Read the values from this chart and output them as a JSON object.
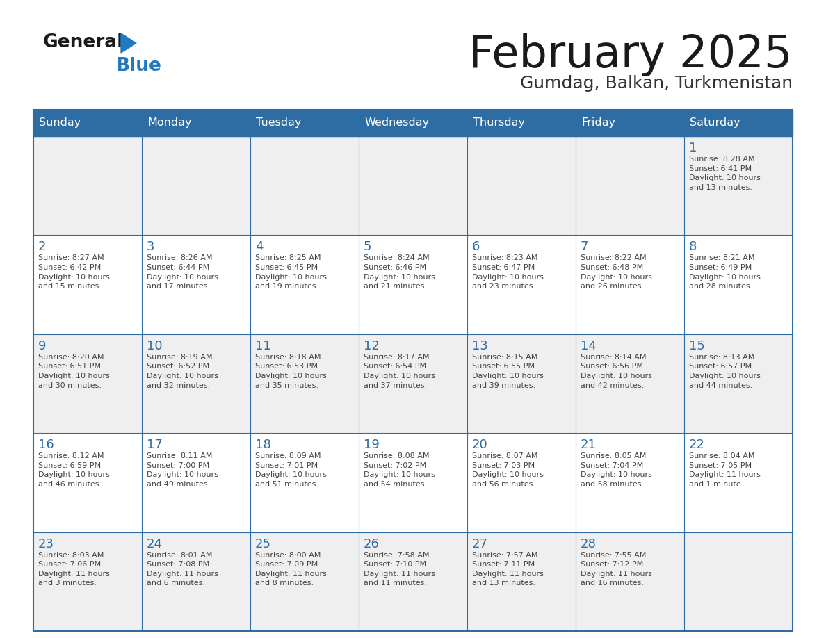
{
  "title": "February 2025",
  "subtitle": "Gumdag, Balkan, Turkmenistan",
  "header_bg": "#2E6DA4",
  "header_text_color": "#FFFFFF",
  "cell_bg_odd": "#EFEFEF",
  "cell_bg_even": "#FFFFFF",
  "day_number_color": "#2E6DA4",
  "cell_text_color": "#444444",
  "border_color": "#2E6DA4",
  "days_of_week": [
    "Sunday",
    "Monday",
    "Tuesday",
    "Wednesday",
    "Thursday",
    "Friday",
    "Saturday"
  ],
  "weeks": [
    [
      {
        "day": null,
        "sunrise": null,
        "sunset": null,
        "daylight": null
      },
      {
        "day": null,
        "sunrise": null,
        "sunset": null,
        "daylight": null
      },
      {
        "day": null,
        "sunrise": null,
        "sunset": null,
        "daylight": null
      },
      {
        "day": null,
        "sunrise": null,
        "sunset": null,
        "daylight": null
      },
      {
        "day": null,
        "sunrise": null,
        "sunset": null,
        "daylight": null
      },
      {
        "day": null,
        "sunrise": null,
        "sunset": null,
        "daylight": null
      },
      {
        "day": 1,
        "sunrise": "8:28 AM",
        "sunset": "6:41 PM",
        "daylight": "10 hours\nand 13 minutes."
      }
    ],
    [
      {
        "day": 2,
        "sunrise": "8:27 AM",
        "sunset": "6:42 PM",
        "daylight": "10 hours\nand 15 minutes."
      },
      {
        "day": 3,
        "sunrise": "8:26 AM",
        "sunset": "6:44 PM",
        "daylight": "10 hours\nand 17 minutes."
      },
      {
        "day": 4,
        "sunrise": "8:25 AM",
        "sunset": "6:45 PM",
        "daylight": "10 hours\nand 19 minutes."
      },
      {
        "day": 5,
        "sunrise": "8:24 AM",
        "sunset": "6:46 PM",
        "daylight": "10 hours\nand 21 minutes."
      },
      {
        "day": 6,
        "sunrise": "8:23 AM",
        "sunset": "6:47 PM",
        "daylight": "10 hours\nand 23 minutes."
      },
      {
        "day": 7,
        "sunrise": "8:22 AM",
        "sunset": "6:48 PM",
        "daylight": "10 hours\nand 26 minutes."
      },
      {
        "day": 8,
        "sunrise": "8:21 AM",
        "sunset": "6:49 PM",
        "daylight": "10 hours\nand 28 minutes."
      }
    ],
    [
      {
        "day": 9,
        "sunrise": "8:20 AM",
        "sunset": "6:51 PM",
        "daylight": "10 hours\nand 30 minutes."
      },
      {
        "day": 10,
        "sunrise": "8:19 AM",
        "sunset": "6:52 PM",
        "daylight": "10 hours\nand 32 minutes."
      },
      {
        "day": 11,
        "sunrise": "8:18 AM",
        "sunset": "6:53 PM",
        "daylight": "10 hours\nand 35 minutes."
      },
      {
        "day": 12,
        "sunrise": "8:17 AM",
        "sunset": "6:54 PM",
        "daylight": "10 hours\nand 37 minutes."
      },
      {
        "day": 13,
        "sunrise": "8:15 AM",
        "sunset": "6:55 PM",
        "daylight": "10 hours\nand 39 minutes."
      },
      {
        "day": 14,
        "sunrise": "8:14 AM",
        "sunset": "6:56 PM",
        "daylight": "10 hours\nand 42 minutes."
      },
      {
        "day": 15,
        "sunrise": "8:13 AM",
        "sunset": "6:57 PM",
        "daylight": "10 hours\nand 44 minutes."
      }
    ],
    [
      {
        "day": 16,
        "sunrise": "8:12 AM",
        "sunset": "6:59 PM",
        "daylight": "10 hours\nand 46 minutes."
      },
      {
        "day": 17,
        "sunrise": "8:11 AM",
        "sunset": "7:00 PM",
        "daylight": "10 hours\nand 49 minutes."
      },
      {
        "day": 18,
        "sunrise": "8:09 AM",
        "sunset": "7:01 PM",
        "daylight": "10 hours\nand 51 minutes."
      },
      {
        "day": 19,
        "sunrise": "8:08 AM",
        "sunset": "7:02 PM",
        "daylight": "10 hours\nand 54 minutes."
      },
      {
        "day": 20,
        "sunrise": "8:07 AM",
        "sunset": "7:03 PM",
        "daylight": "10 hours\nand 56 minutes."
      },
      {
        "day": 21,
        "sunrise": "8:05 AM",
        "sunset": "7:04 PM",
        "daylight": "10 hours\nand 58 minutes."
      },
      {
        "day": 22,
        "sunrise": "8:04 AM",
        "sunset": "7:05 PM",
        "daylight": "11 hours\nand 1 minute."
      }
    ],
    [
      {
        "day": 23,
        "sunrise": "8:03 AM",
        "sunset": "7:06 PM",
        "daylight": "11 hours\nand 3 minutes."
      },
      {
        "day": 24,
        "sunrise": "8:01 AM",
        "sunset": "7:08 PM",
        "daylight": "11 hours\nand 6 minutes."
      },
      {
        "day": 25,
        "sunrise": "8:00 AM",
        "sunset": "7:09 PM",
        "daylight": "11 hours\nand 8 minutes."
      },
      {
        "day": 26,
        "sunrise": "7:58 AM",
        "sunset": "7:10 PM",
        "daylight": "11 hours\nand 11 minutes."
      },
      {
        "day": 27,
        "sunrise": "7:57 AM",
        "sunset": "7:11 PM",
        "daylight": "11 hours\nand 13 minutes."
      },
      {
        "day": 28,
        "sunrise": "7:55 AM",
        "sunset": "7:12 PM",
        "daylight": "11 hours\nand 16 minutes."
      },
      {
        "day": null,
        "sunrise": null,
        "sunset": null,
        "daylight": null
      }
    ]
  ],
  "logo_general_color": "#1a1a1a",
  "logo_blue_color": "#2179BE",
  "logo_triangle_color": "#2179BE"
}
